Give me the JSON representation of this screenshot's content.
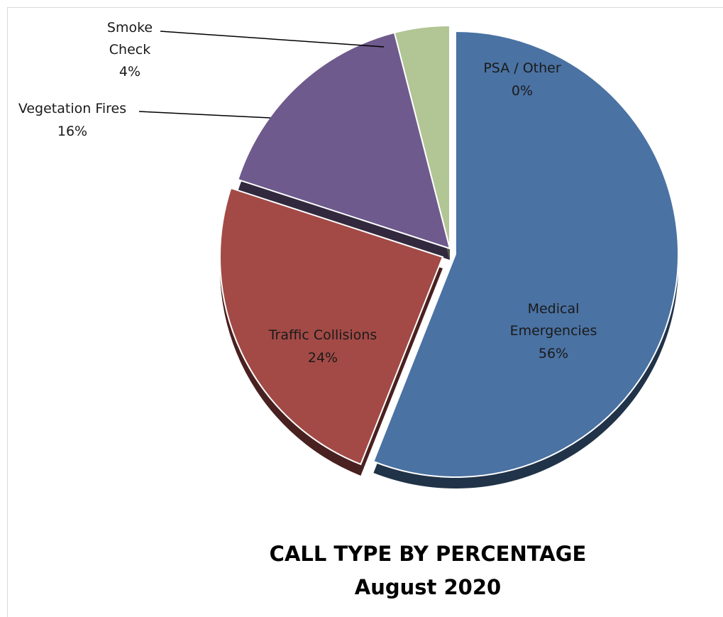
{
  "chart_data": {
    "type": "pie",
    "title": "CALL TYPE BY PERCENTAGE",
    "subtitle": "August 2020",
    "style": "3d-exploded",
    "slices": [
      {
        "label": "Medical Emergencies",
        "value": 56,
        "value_label": "56%",
        "color": "#4a72a3"
      },
      {
        "label": "Traffic Collisions",
        "value": 24,
        "value_label": "24%",
        "color": "#a34a46"
      },
      {
        "label": "Vegetation Fires",
        "value": 16,
        "value_label": "16%",
        "color": "#6e5a8c"
      },
      {
        "label": "Smoke Check",
        "value": 4,
        "value_label": "4%",
        "color": "#b2c595"
      },
      {
        "label": "PSA / Other",
        "value": 0,
        "value_label": "0%",
        "color": "#4a72a3"
      }
    ]
  }
}
